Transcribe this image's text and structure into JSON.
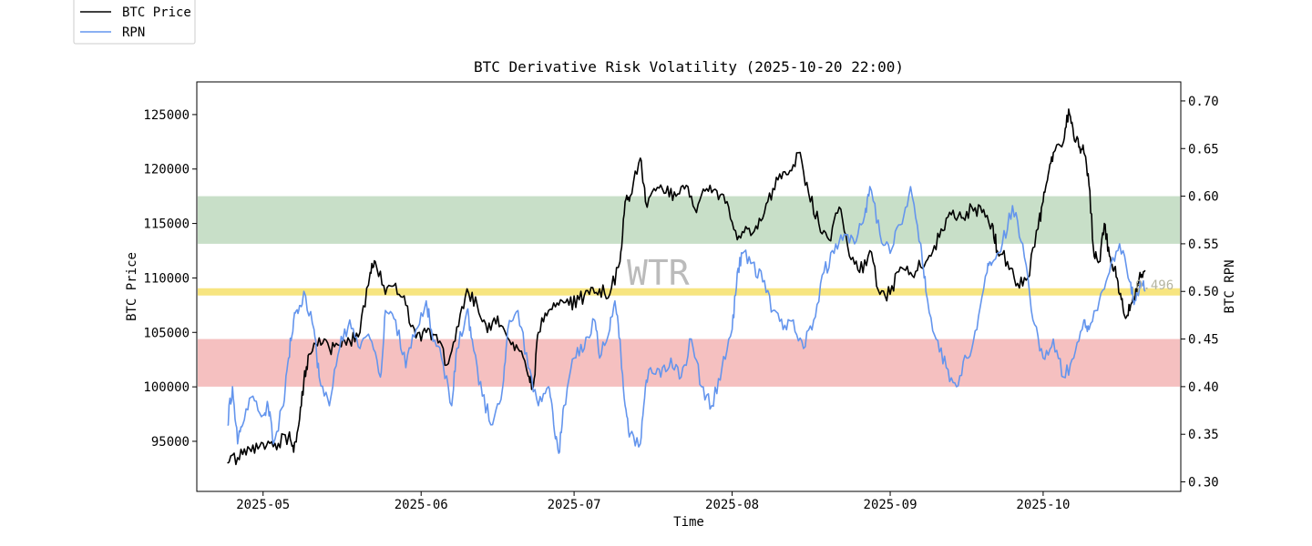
{
  "chart_data": {
    "type": "line",
    "title": "BTC Derivative Risk Volatility (2025-10-20 22:00)",
    "xlabel": "Time",
    "ylabel_left": "BTC Price",
    "ylabel_right": "BTC RPN",
    "x_range": [
      "2025-04-18",
      "2025-10-28"
    ],
    "ylim_left": [
      90400,
      128000
    ],
    "ylim_right": [
      0.29,
      0.72
    ],
    "x_ticks": [
      {
        "date": "2025-05-01",
        "label": "2025-05"
      },
      {
        "date": "2025-06-01",
        "label": "2025-06"
      },
      {
        "date": "2025-07-01",
        "label": "2025-07"
      },
      {
        "date": "2025-08-01",
        "label": "2025-08"
      },
      {
        "date": "2025-09-01",
        "label": "2025-09"
      },
      {
        "date": "2025-10-01",
        "label": "2025-10"
      }
    ],
    "y_ticks_left": [
      {
        "value": 95000,
        "label": "95000"
      },
      {
        "value": 100000,
        "label": "100000"
      },
      {
        "value": 105000,
        "label": "105000"
      },
      {
        "value": 110000,
        "label": "110000"
      },
      {
        "value": 115000,
        "label": "115000"
      },
      {
        "value": 120000,
        "label": "120000"
      },
      {
        "value": 125000,
        "label": "125000"
      }
    ],
    "y_ticks_right": [
      {
        "value": 0.3,
        "label": "0.30"
      },
      {
        "value": 0.35,
        "label": "0.35"
      },
      {
        "value": 0.4,
        "label": "0.40"
      },
      {
        "value": 0.45,
        "label": "0.45"
      },
      {
        "value": 0.5,
        "label": "0.50"
      },
      {
        "value": 0.55,
        "label": "0.55"
      },
      {
        "value": 0.6,
        "label": "0.60"
      },
      {
        "value": 0.65,
        "label": "0.65"
      },
      {
        "value": 0.7,
        "label": "0.70"
      }
    ],
    "bands": [
      {
        "name": "high-risk-band",
        "from": 0.55,
        "to": 0.6,
        "color": "#c8dfc8"
      },
      {
        "name": "neutral-line",
        "from": 0.496,
        "to": 0.503,
        "color": "#f7e580"
      },
      {
        "name": "low-risk-band",
        "from": 0.4,
        "to": 0.45,
        "color": "#f5c0c0"
      }
    ],
    "annotations": {
      "watermark": "WTR",
      "latest_rpn_label": "0.496"
    },
    "legend": {
      "placement": "top-left",
      "entries": [
        {
          "name": "BTC Price",
          "color": "#000000"
        },
        {
          "name": "RPN",
          "color": "#6495ed"
        }
      ]
    },
    "series": [
      {
        "name": "BTC Price",
        "axis": "left",
        "color": "#000000",
        "points": [
          [
            "2025-04-24",
            93000
          ],
          [
            "2025-04-26",
            93500
          ],
          [
            "2025-04-28",
            94500
          ],
          [
            "2025-04-30",
            94300
          ],
          [
            "2025-05-02",
            95000
          ],
          [
            "2025-05-04",
            94800
          ],
          [
            "2025-05-06",
            95500
          ],
          [
            "2025-05-07",
            94000
          ],
          [
            "2025-05-08",
            96500
          ],
          [
            "2025-05-09",
            100500
          ],
          [
            "2025-05-10",
            103000
          ],
          [
            "2025-05-12",
            104500
          ],
          [
            "2025-05-14",
            103500
          ],
          [
            "2025-05-16",
            103800
          ],
          [
            "2025-05-18",
            104200
          ],
          [
            "2025-05-20",
            105000
          ],
          [
            "2025-05-22",
            110500
          ],
          [
            "2025-05-23",
            111500
          ],
          [
            "2025-05-25",
            108500
          ],
          [
            "2025-05-27",
            109500
          ],
          [
            "2025-05-29",
            107500
          ],
          [
            "2025-05-31",
            104500
          ],
          [
            "2025-06-02",
            105000
          ],
          [
            "2025-06-04",
            104800
          ],
          [
            "2025-06-06",
            102000
          ],
          [
            "2025-06-08",
            105500
          ],
          [
            "2025-06-10",
            109000
          ],
          [
            "2025-06-12",
            107500
          ],
          [
            "2025-06-14",
            105000
          ],
          [
            "2025-06-16",
            106500
          ],
          [
            "2025-06-18",
            104500
          ],
          [
            "2025-06-20",
            103500
          ],
          [
            "2025-06-22",
            101000
          ],
          [
            "2025-06-23",
            100000
          ],
          [
            "2025-06-24",
            105000
          ],
          [
            "2025-06-26",
            107000
          ],
          [
            "2025-06-28",
            107500
          ],
          [
            "2025-06-30",
            107500
          ],
          [
            "2025-07-02",
            108000
          ],
          [
            "2025-07-04",
            108500
          ],
          [
            "2025-07-06",
            109000
          ],
          [
            "2025-07-08",
            108500
          ],
          [
            "2025-07-10",
            111500
          ],
          [
            "2025-07-11",
            117000
          ],
          [
            "2025-07-12",
            117500
          ],
          [
            "2025-07-14",
            121000
          ],
          [
            "2025-07-15",
            117000
          ],
          [
            "2025-07-17",
            118000
          ],
          [
            "2025-07-19",
            117800
          ],
          [
            "2025-07-21",
            117500
          ],
          [
            "2025-07-23",
            118500
          ],
          [
            "2025-07-25",
            116000
          ],
          [
            "2025-07-27",
            118200
          ],
          [
            "2025-07-29",
            118000
          ],
          [
            "2025-07-31",
            117000
          ],
          [
            "2025-08-02",
            113500
          ],
          [
            "2025-08-04",
            114500
          ],
          [
            "2025-08-06",
            114500
          ],
          [
            "2025-08-08",
            117000
          ],
          [
            "2025-08-10",
            119000
          ],
          [
            "2025-08-12",
            119500
          ],
          [
            "2025-08-14",
            121500
          ],
          [
            "2025-08-16",
            117800
          ],
          [
            "2025-08-18",
            115000
          ],
          [
            "2025-08-20",
            113500
          ],
          [
            "2025-08-22",
            116500
          ],
          [
            "2025-08-24",
            112000
          ],
          [
            "2025-08-26",
            110500
          ],
          [
            "2025-08-28",
            112500
          ],
          [
            "2025-08-30",
            108500
          ],
          [
            "2025-09-01",
            108500
          ],
          [
            "2025-09-03",
            111000
          ],
          [
            "2025-09-05",
            110500
          ],
          [
            "2025-09-07",
            111000
          ],
          [
            "2025-09-09",
            112000
          ],
          [
            "2025-09-11",
            114500
          ],
          [
            "2025-09-13",
            115800
          ],
          [
            "2025-09-15",
            115500
          ],
          [
            "2025-09-17",
            116500
          ],
          [
            "2025-09-19",
            116000
          ],
          [
            "2025-09-21",
            115000
          ],
          [
            "2025-09-22",
            112500
          ],
          [
            "2025-09-24",
            111500
          ],
          [
            "2025-09-26",
            109500
          ],
          [
            "2025-09-28",
            110000
          ],
          [
            "2025-09-30",
            114500
          ],
          [
            "2025-10-01",
            117000
          ],
          [
            "2025-10-02",
            119500
          ],
          [
            "2025-10-03",
            121500
          ],
          [
            "2025-10-05",
            122500
          ],
          [
            "2025-10-06",
            125500
          ],
          [
            "2025-10-07",
            123000
          ],
          [
            "2025-10-08",
            122000
          ],
          [
            "2025-10-09",
            121500
          ],
          [
            "2025-10-10",
            118500
          ],
          [
            "2025-10-11",
            112000
          ],
          [
            "2025-10-12",
            111500
          ],
          [
            "2025-10-13",
            115000
          ],
          [
            "2025-10-14",
            112000
          ],
          [
            "2025-10-15",
            111000
          ],
          [
            "2025-10-16",
            108500
          ],
          [
            "2025-10-17",
            106500
          ],
          [
            "2025-10-18",
            107000
          ],
          [
            "2025-10-19",
            108000
          ],
          [
            "2025-10-20",
            110500
          ],
          [
            "2025-10-21",
            110700
          ]
        ]
      },
      {
        "name": "RPN",
        "axis": "right",
        "color": "#6495ed",
        "points": [
          [
            "2025-04-24",
            0.36
          ],
          [
            "2025-04-25",
            0.4
          ],
          [
            "2025-04-26",
            0.34
          ],
          [
            "2025-04-27",
            0.36
          ],
          [
            "2025-04-29",
            0.39
          ],
          [
            "2025-05-01",
            0.37
          ],
          [
            "2025-05-02",
            0.38
          ],
          [
            "2025-05-03",
            0.34
          ],
          [
            "2025-05-05",
            0.38
          ],
          [
            "2025-05-06",
            0.43
          ],
          [
            "2025-05-07",
            0.47
          ],
          [
            "2025-05-08",
            0.48
          ],
          [
            "2025-05-09",
            0.5
          ],
          [
            "2025-05-11",
            0.46
          ],
          [
            "2025-05-12",
            0.41
          ],
          [
            "2025-05-14",
            0.38
          ],
          [
            "2025-05-16",
            0.44
          ],
          [
            "2025-05-18",
            0.47
          ],
          [
            "2025-05-20",
            0.44
          ],
          [
            "2025-05-22",
            0.45
          ],
          [
            "2025-05-24",
            0.41
          ],
          [
            "2025-05-25",
            0.48
          ],
          [
            "2025-05-27",
            0.47
          ],
          [
            "2025-05-29",
            0.42
          ],
          [
            "2025-05-31",
            0.46
          ],
          [
            "2025-06-02",
            0.49
          ],
          [
            "2025-06-03",
            0.46
          ],
          [
            "2025-06-05",
            0.43
          ],
          [
            "2025-06-07",
            0.38
          ],
          [
            "2025-06-08",
            0.44
          ],
          [
            "2025-06-10",
            0.48
          ],
          [
            "2025-06-11",
            0.45
          ],
          [
            "2025-06-13",
            0.39
          ],
          [
            "2025-06-15",
            0.36
          ],
          [
            "2025-06-17",
            0.4
          ],
          [
            "2025-06-18",
            0.46
          ],
          [
            "2025-06-20",
            0.48
          ],
          [
            "2025-06-22",
            0.42
          ],
          [
            "2025-06-24",
            0.38
          ],
          [
            "2025-06-26",
            0.4
          ],
          [
            "2025-06-27",
            0.36
          ],
          [
            "2025-06-28",
            0.33
          ],
          [
            "2025-06-29",
            0.38
          ],
          [
            "2025-07-01",
            0.43
          ],
          [
            "2025-07-03",
            0.44
          ],
          [
            "2025-07-05",
            0.47
          ],
          [
            "2025-07-06",
            0.43
          ],
          [
            "2025-07-08",
            0.46
          ],
          [
            "2025-07-09",
            0.49
          ],
          [
            "2025-07-10",
            0.45
          ],
          [
            "2025-07-11",
            0.38
          ],
          [
            "2025-07-12",
            0.35
          ],
          [
            "2025-07-14",
            0.34
          ],
          [
            "2025-07-15",
            0.4
          ],
          [
            "2025-07-16",
            0.42
          ],
          [
            "2025-07-18",
            0.41
          ],
          [
            "2025-07-20",
            0.43
          ],
          [
            "2025-07-22",
            0.41
          ],
          [
            "2025-07-24",
            0.45
          ],
          [
            "2025-07-26",
            0.4
          ],
          [
            "2025-07-28",
            0.38
          ],
          [
            "2025-07-30",
            0.42
          ],
          [
            "2025-08-01",
            0.46
          ],
          [
            "2025-08-02",
            0.52
          ],
          [
            "2025-08-03",
            0.54
          ],
          [
            "2025-08-05",
            0.53
          ],
          [
            "2025-08-07",
            0.51
          ],
          [
            "2025-08-09",
            0.48
          ],
          [
            "2025-08-11",
            0.46
          ],
          [
            "2025-08-13",
            0.47
          ],
          [
            "2025-08-15",
            0.44
          ],
          [
            "2025-08-17",
            0.47
          ],
          [
            "2025-08-19",
            0.52
          ],
          [
            "2025-08-21",
            0.54
          ],
          [
            "2025-08-23",
            0.56
          ],
          [
            "2025-08-25",
            0.55
          ],
          [
            "2025-08-27",
            0.58
          ],
          [
            "2025-08-28",
            0.61
          ],
          [
            "2025-08-30",
            0.56
          ],
          [
            "2025-09-01",
            0.54
          ],
          [
            "2025-09-03",
            0.57
          ],
          [
            "2025-09-05",
            0.61
          ],
          [
            "2025-09-07",
            0.55
          ],
          [
            "2025-09-08",
            0.5
          ],
          [
            "2025-09-10",
            0.45
          ],
          [
            "2025-09-12",
            0.42
          ],
          [
            "2025-09-14",
            0.4
          ],
          [
            "2025-09-16",
            0.43
          ],
          [
            "2025-09-18",
            0.46
          ],
          [
            "2025-09-20",
            0.52
          ],
          [
            "2025-09-21",
            0.53
          ],
          [
            "2025-09-23",
            0.55
          ],
          [
            "2025-09-25",
            0.59
          ],
          [
            "2025-09-27",
            0.55
          ],
          [
            "2025-09-29",
            0.47
          ],
          [
            "2025-10-01",
            0.43
          ],
          [
            "2025-10-03",
            0.45
          ],
          [
            "2025-10-05",
            0.41
          ],
          [
            "2025-10-07",
            0.43
          ],
          [
            "2025-10-09",
            0.47
          ],
          [
            "2025-10-10",
            0.46
          ],
          [
            "2025-10-12",
            0.49
          ],
          [
            "2025-10-14",
            0.52
          ],
          [
            "2025-10-16",
            0.55
          ],
          [
            "2025-10-18",
            0.51
          ],
          [
            "2025-10-19",
            0.49
          ],
          [
            "2025-10-20",
            0.51
          ],
          [
            "2025-10-21",
            0.5
          ]
        ]
      }
    ]
  }
}
